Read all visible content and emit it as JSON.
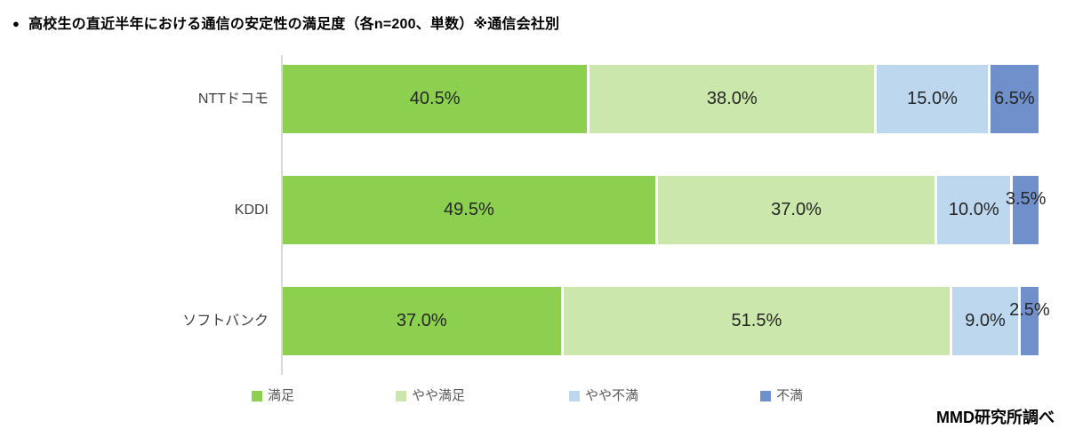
{
  "title": {
    "bullet": "●",
    "text": "高校生の直近半年における通信の安定性の満足度（各n=200、単数）※通信会社別"
  },
  "source": "MMD研究所調べ",
  "colors": {
    "satisfied": "#8DD04F",
    "somewhat_satisfied": "#CCE7AC",
    "somewhat_dissatisfied": "#BDD8EE",
    "dissatisfied": "#7090CC",
    "axis_line": "#D9D9D9",
    "value_text": "#262626",
    "category_text": "#404040",
    "legend_text": "#595959"
  },
  "chart_data": {
    "type": "bar",
    "variant": "horizontal-stacked",
    "title": "高校生の直近半年における通信の安定性の満足度（各n=200、単数）※通信会社別",
    "categories": [
      "NTTドコモ",
      "KDDI",
      "ソフトバンク"
    ],
    "series": [
      {
        "name": "満足",
        "color": "#8DD04F",
        "values": [
          40.5,
          49.5,
          37.0
        ]
      },
      {
        "name": "やや満足",
        "color": "#CCE7AC",
        "values": [
          38.0,
          37.0,
          51.5
        ]
      },
      {
        "name": "やや不満",
        "color": "#BDD8EE",
        "values": [
          15.0,
          10.0,
          9.0
        ]
      },
      {
        "name": "不満",
        "color": "#7090CC",
        "values": [
          6.5,
          3.5,
          2.5
        ]
      }
    ],
    "value_suffix": "%",
    "xlim": [
      0,
      100
    ],
    "grid": false,
    "legend_position": "bottom",
    "source_note": "MMD研究所調べ"
  },
  "layout_note": ""
}
